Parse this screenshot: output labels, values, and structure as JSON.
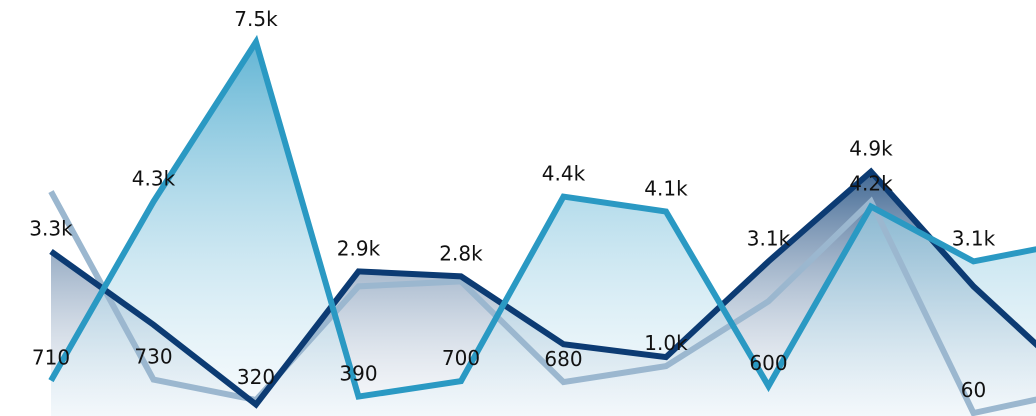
{
  "chart_data": {
    "type": "area",
    "x": [
      0,
      1,
      2,
      3,
      4,
      5,
      6,
      7,
      8,
      9,
      10
    ],
    "series": [
      {
        "key": "dark",
        "values": [
          3300,
          1830,
          230,
          2900,
          2800,
          1440,
          1180,
          3100,
          4900,
          2600,
          700
        ],
        "labels": [
          "3.3k",
          "",
          "",
          "2.9k",
          "2.8k",
          "",
          "",
          "3.1k",
          "4.9k",
          "",
          ""
        ],
        "color": "#0c3b73",
        "fill": true,
        "fill_opacity": 0.75
      },
      {
        "key": "teal",
        "values": [
          710,
          4300,
          7500,
          390,
          700,
          4400,
          4100,
          600,
          4200,
          3100,
          3500
        ],
        "labels": [
          "710",
          "4.3k",
          "7.5k",
          "390",
          "700",
          "4.4k",
          "4.1k",
          "600",
          "4.2k",
          "3.1k",
          ""
        ],
        "color": "#2a99c3",
        "fill": true,
        "fill_opacity": 0.7
      },
      {
        "key": "light",
        "values": [
          4500,
          730,
          320,
          2600,
          2700,
          680,
          1000,
          2300,
          4300,
          60,
          500
        ],
        "labels": [
          "",
          "730",
          "320",
          "",
          "",
          "680",
          "1.0k",
          "",
          "",
          "60",
          ""
        ],
        "color": "#9bb7cf",
        "fill": false
      }
    ],
    "grid": false,
    "legend": "none"
  }
}
